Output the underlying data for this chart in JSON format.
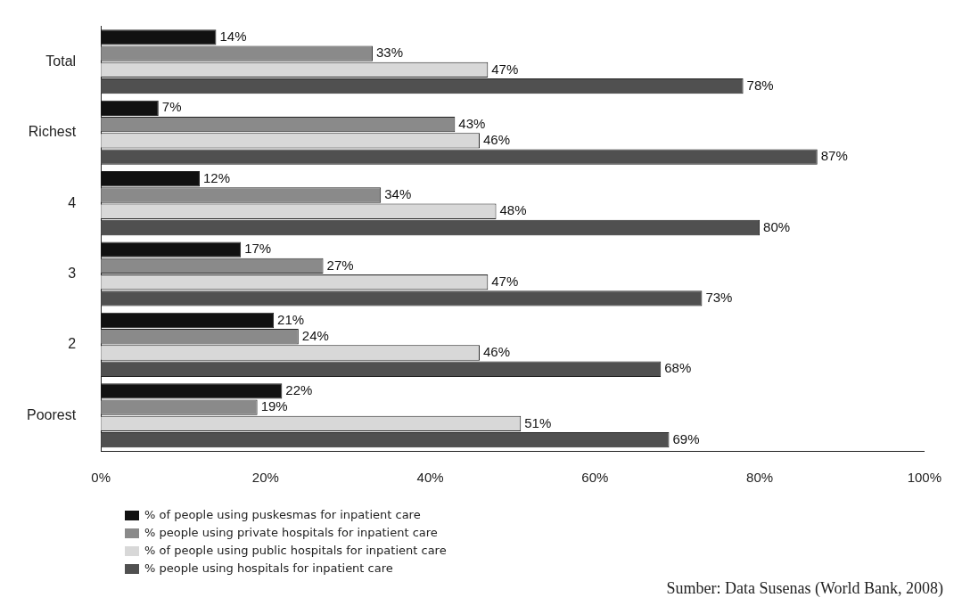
{
  "chart_data": {
    "type": "bar",
    "orientation": "horizontal",
    "categories": [
      "Total",
      "Richest",
      "4",
      "3",
      "2",
      "Poorest"
    ],
    "series": [
      {
        "name": "% of people using puskesmas for inpatient care",
        "color": "#111111",
        "values": [
          14,
          7,
          12,
          17,
          21,
          22
        ],
        "value_labels": [
          "14%",
          "7%",
          "12%",
          "17%",
          "21%",
          "22%"
        ]
      },
      {
        "name": "% people using private hospitals for inpatient care",
        "color": "#8a8a8a",
        "values": [
          33,
          43,
          34,
          27,
          24,
          19
        ],
        "value_labels": [
          "33%",
          "43%",
          "34%",
          "27%",
          "24%",
          "19%"
        ]
      },
      {
        "name": "% of people using public hospitals for inpatient care",
        "color": "#d8d8d8",
        "values": [
          47,
          46,
          48,
          47,
          46,
          51
        ],
        "value_labels": [
          "47%",
          "46%",
          "48%",
          "47%",
          "46%",
          "51%"
        ]
      },
      {
        "name": "% people using hospitals for inpatient care",
        "color": "#505050",
        "values": [
          78,
          87,
          80,
          73,
          68,
          69
        ],
        "value_labels": [
          "78%",
          "87%",
          "80%",
          "73%",
          "68%",
          "69%"
        ]
      }
    ],
    "xlim": [
      0,
      100
    ],
    "xticks": [
      {
        "value": 0,
        "label": "0%"
      },
      {
        "value": 20,
        "label": "20%"
      },
      {
        "value": 40,
        "label": "40%"
      },
      {
        "value": 60,
        "label": "60%"
      },
      {
        "value": 80,
        "label": "80%"
      },
      {
        "value": 100,
        "label": "100%"
      }
    ],
    "grid": false,
    "legend": "bottom left",
    "annotations": [
      "Sumber: Data Susenas (World Bank, 2008)"
    ]
  }
}
